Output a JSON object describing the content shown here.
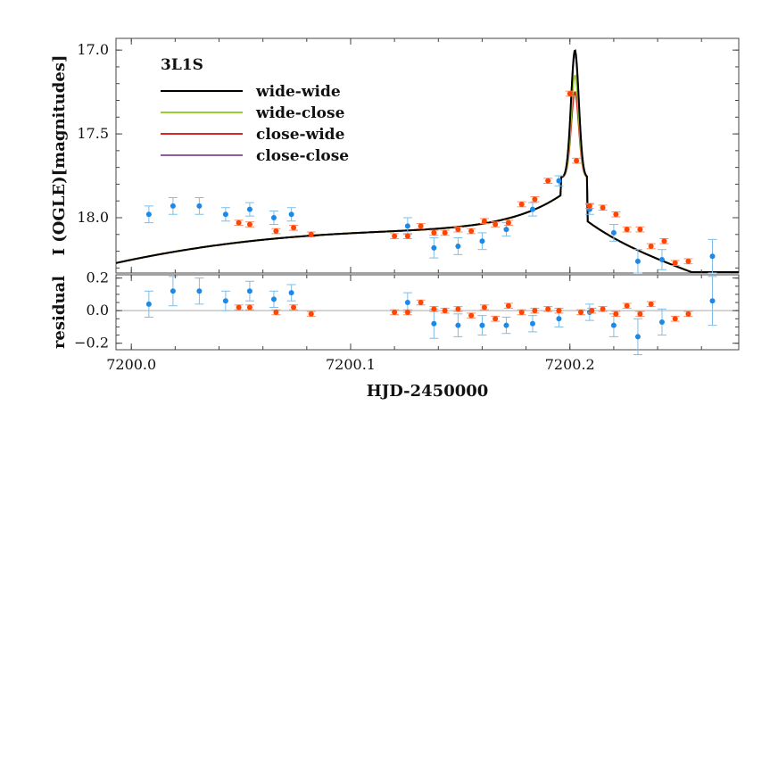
{
  "chart_data": {
    "type": "scatter",
    "xlabel": "HJD-2450000",
    "xlim": [
      7199.993,
      7200.277
    ],
    "x_ticks": [
      7200.0,
      7200.1,
      7200.2
    ],
    "x_tick_labels": [
      "7200.0",
      "7200.1",
      "7200.2"
    ],
    "top_panel": {
      "ylabel": "I (OGLE)[magnitudes]",
      "ylim": [
        18.33,
        16.93
      ],
      "inverted_y": true,
      "y_ticks": [
        17.0,
        17.5,
        18.0
      ],
      "y_tick_labels": [
        "17.0",
        "17.5",
        "18.0"
      ],
      "legend_title": "3L1S",
      "legend_position": "top-left",
      "series": [
        {
          "name": "wide-wide",
          "color": "#000000",
          "peak": 17.0
        },
        {
          "name": "wide-close",
          "color": "#9acd32",
          "peak": 17.15
        },
        {
          "name": "close-wide",
          "color": "#d62728",
          "peak": 17.25
        },
        {
          "name": "close-close",
          "color": "#8e5ea2",
          "peak": 17.02
        }
      ],
      "data_sets": [
        {
          "color": "#1e88e5",
          "points": [
            [
              7200.008,
              17.98,
              0.05
            ],
            [
              7200.019,
              17.93,
              0.05
            ],
            [
              7200.031,
              17.93,
              0.05
            ],
            [
              7200.043,
              17.98,
              0.04
            ],
            [
              7200.054,
              17.95,
              0.04
            ],
            [
              7200.065,
              18.0,
              0.04
            ],
            [
              7200.073,
              17.98,
              0.04
            ],
            [
              7200.126,
              18.05,
              0.05
            ],
            [
              7200.138,
              18.18,
              0.06
            ],
            [
              7200.149,
              18.17,
              0.05
            ],
            [
              7200.16,
              18.14,
              0.05
            ],
            [
              7200.171,
              18.07,
              0.04
            ],
            [
              7200.183,
              17.95,
              0.04
            ],
            [
              7200.195,
              17.78,
              0.03
            ],
            [
              7200.209,
              17.95,
              0.03
            ],
            [
              7200.22,
              18.09,
              0.05
            ],
            [
              7200.231,
              18.26,
              0.07
            ],
            [
              7200.242,
              18.25,
              0.06
            ],
            [
              7200.265,
              18.23,
              0.1
            ]
          ]
        },
        {
          "color": "#ff4500",
          "points": [
            [
              7200.049,
              18.03,
              0.015
            ],
            [
              7200.054,
              18.04,
              0.015
            ],
            [
              7200.066,
              18.08,
              0.015
            ],
            [
              7200.074,
              18.06,
              0.015
            ],
            [
              7200.082,
              18.1,
              0.015
            ],
            [
              7200.12,
              18.11,
              0.015
            ],
            [
              7200.126,
              18.11,
              0.015
            ],
            [
              7200.132,
              18.05,
              0.015
            ],
            [
              7200.138,
              18.09,
              0.015
            ],
            [
              7200.143,
              18.09,
              0.015
            ],
            [
              7200.149,
              18.07,
              0.015
            ],
            [
              7200.155,
              18.08,
              0.015
            ],
            [
              7200.161,
              18.02,
              0.015
            ],
            [
              7200.166,
              18.04,
              0.015
            ],
            [
              7200.172,
              18.03,
              0.015
            ],
            [
              7200.178,
              17.92,
              0.015
            ],
            [
              7200.184,
              17.89,
              0.015
            ],
            [
              7200.19,
              17.78,
              0.015
            ],
            [
              7200.2,
              17.26,
              0.015
            ],
            [
              7200.203,
              17.66,
              0.015
            ],
            [
              7200.209,
              17.93,
              0.015
            ],
            [
              7200.215,
              17.94,
              0.015
            ],
            [
              7200.221,
              17.98,
              0.015
            ],
            [
              7200.226,
              18.07,
              0.015
            ],
            [
              7200.232,
              18.07,
              0.015
            ],
            [
              7200.237,
              18.17,
              0.015
            ],
            [
              7200.243,
              18.14,
              0.015
            ],
            [
              7200.248,
              18.27,
              0.015
            ],
            [
              7200.254,
              18.26,
              0.015
            ]
          ]
        }
      ]
    },
    "bottom_panel": {
      "ylabel": "residual",
      "ylim": [
        -0.24,
        0.22
      ],
      "y_ticks": [
        -0.2,
        0.0,
        0.2
      ],
      "y_tick_labels": [
        "−0.2",
        "0.0",
        "0.2"
      ],
      "zero_line": true,
      "data_sets": [
        {
          "color": "#1e88e5",
          "points": [
            [
              7200.008,
              0.04,
              0.08
            ],
            [
              7200.019,
              0.12,
              0.09
            ],
            [
              7200.031,
              0.12,
              0.08
            ],
            [
              7200.043,
              0.06,
              0.06
            ],
            [
              7200.054,
              0.12,
              0.06
            ],
            [
              7200.065,
              0.07,
              0.05
            ],
            [
              7200.073,
              0.11,
              0.05
            ],
            [
              7200.126,
              0.05,
              0.06
            ],
            [
              7200.138,
              -0.08,
              0.09
            ],
            [
              7200.149,
              -0.09,
              0.07
            ],
            [
              7200.16,
              -0.09,
              0.06
            ],
            [
              7200.171,
              -0.09,
              0.05
            ],
            [
              7200.183,
              -0.08,
              0.05
            ],
            [
              7200.195,
              -0.05,
              0.05
            ],
            [
              7200.209,
              -0.01,
              0.05
            ],
            [
              7200.22,
              -0.09,
              0.07
            ],
            [
              7200.231,
              -0.16,
              0.11
            ],
            [
              7200.242,
              -0.07,
              0.08
            ],
            [
              7200.265,
              0.06,
              0.15
            ]
          ]
        },
        {
          "color": "#ff4500",
          "points": [
            [
              7200.049,
              0.02,
              0.015
            ],
            [
              7200.054,
              0.02,
              0.015
            ],
            [
              7200.066,
              -0.01,
              0.015
            ],
            [
              7200.074,
              0.02,
              0.015
            ],
            [
              7200.082,
              -0.02,
              0.015
            ],
            [
              7200.12,
              -0.01,
              0.015
            ],
            [
              7200.126,
              -0.01,
              0.015
            ],
            [
              7200.132,
              0.05,
              0.015
            ],
            [
              7200.138,
              0.01,
              0.015
            ],
            [
              7200.143,
              0.0,
              0.015
            ],
            [
              7200.149,
              0.01,
              0.015
            ],
            [
              7200.155,
              -0.03,
              0.015
            ],
            [
              7200.161,
              0.02,
              0.015
            ],
            [
              7200.166,
              -0.05,
              0.015
            ],
            [
              7200.172,
              0.03,
              0.015
            ],
            [
              7200.178,
              -0.01,
              0.015
            ],
            [
              7200.184,
              0.0,
              0.015
            ],
            [
              7200.19,
              0.01,
              0.015
            ],
            [
              7200.195,
              0.0,
              0.015
            ],
            [
              7200.205,
              -0.01,
              0.015
            ],
            [
              7200.21,
              0.0,
              0.015
            ],
            [
              7200.215,
              0.01,
              0.015
            ],
            [
              7200.221,
              -0.02,
              0.015
            ],
            [
              7200.226,
              0.03,
              0.015
            ],
            [
              7200.232,
              -0.02,
              0.015
            ],
            [
              7200.237,
              0.04,
              0.015
            ],
            [
              7200.248,
              -0.05,
              0.015
            ],
            [
              7200.254,
              -0.02,
              0.015
            ]
          ]
        }
      ]
    }
  }
}
